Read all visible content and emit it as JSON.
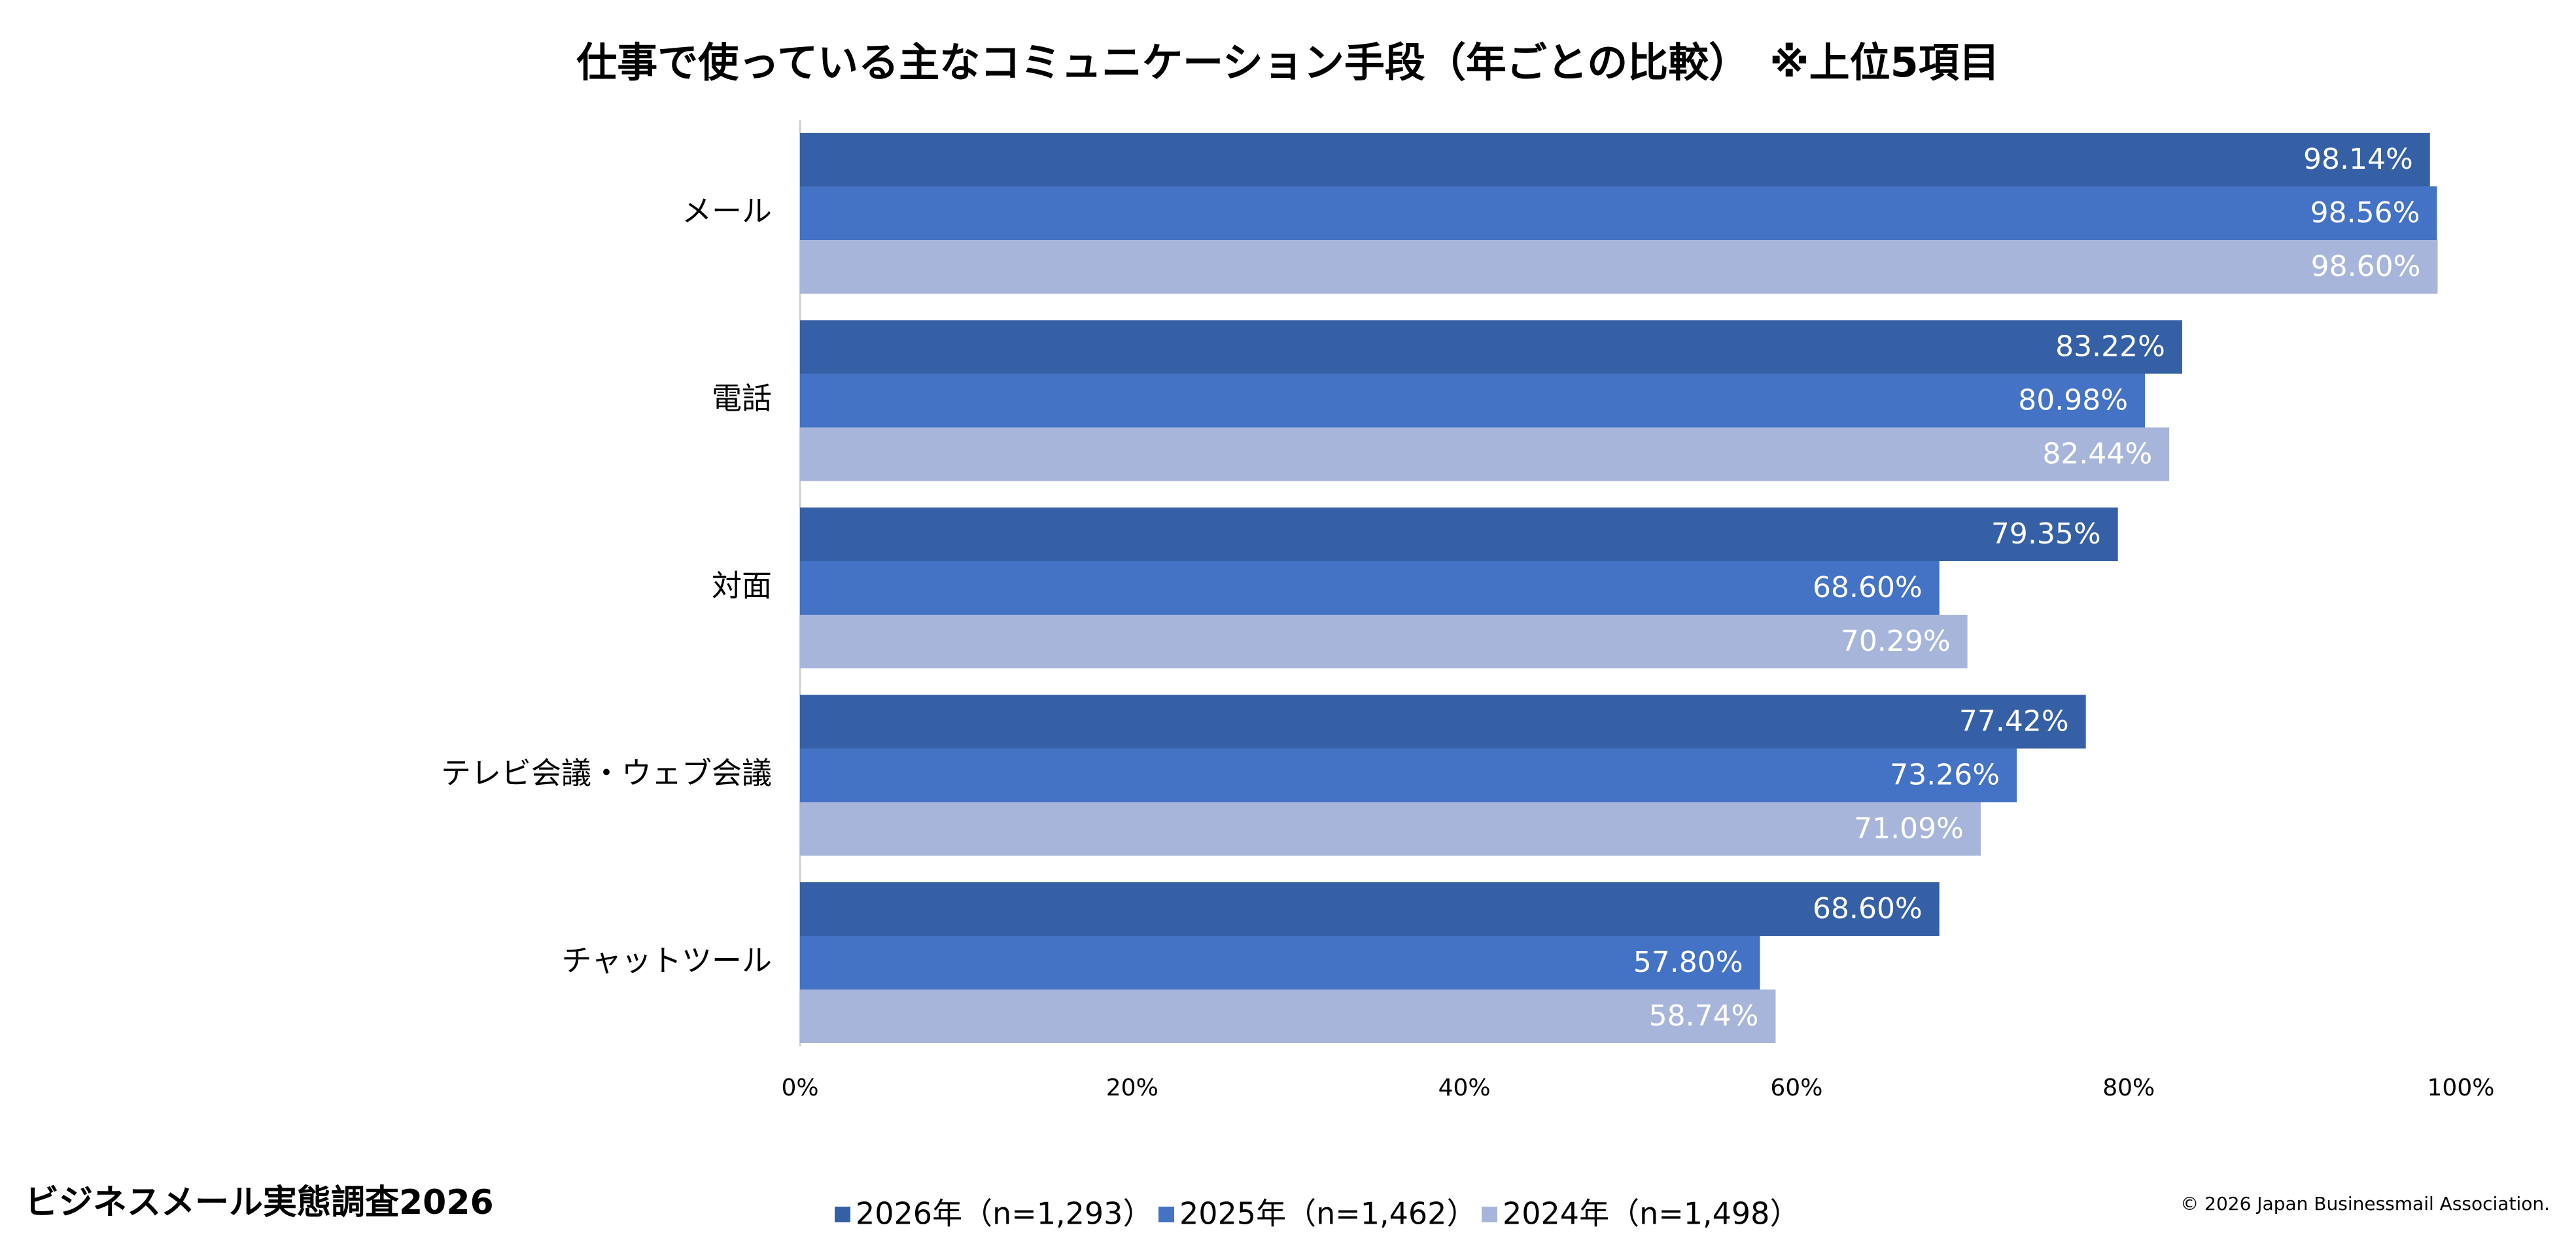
{
  "chart_data": {
    "type": "hbar",
    "title": "仕事で使っている主なコミュニケーション手段（年ごとの比較）　※上位5項目",
    "categories": [
      "メール",
      "電話",
      "対面",
      "テレビ会議・ウェブ会議",
      "チャットツール"
    ],
    "series": [
      {
        "name": "2026年（n=1,293）",
        "color": "#3660a6",
        "values": [
          98.14,
          83.22,
          79.35,
          77.42,
          68.6
        ],
        "value_labels": [
          "98.14%",
          "83.22%",
          "79.35%",
          "77.42%",
          "68.60%"
        ]
      },
      {
        "name": "2025年（n=1,462）",
        "color": "#4472c4",
        "values": [
          98.56,
          80.98,
          68.6,
          73.26,
          57.8
        ],
        "value_labels": [
          "98.56%",
          "80.98%",
          "68.60%",
          "73.26%",
          "57.80%"
        ]
      },
      {
        "name": "2024年（n=1,498）",
        "color": "#a8b5db",
        "values": [
          98.6,
          82.44,
          70.29,
          71.09,
          58.74
        ],
        "value_labels": [
          "98.60%",
          "82.44%",
          "70.29%",
          "71.09%",
          "58.74%"
        ]
      }
    ],
    "xlim": [
      0,
      100
    ],
    "xticks": [
      {
        "value": 0,
        "label": "0%"
      },
      {
        "value": 20,
        "label": "20%"
      },
      {
        "value": 40,
        "label": "40%"
      },
      {
        "value": 60,
        "label": "60%"
      },
      {
        "value": 80,
        "label": "80%"
      },
      {
        "value": 100,
        "label": "100%"
      }
    ],
    "source": "ビジネスメール実態調査2026",
    "copyright": "© 2026 Japan Businessmail Association."
  }
}
